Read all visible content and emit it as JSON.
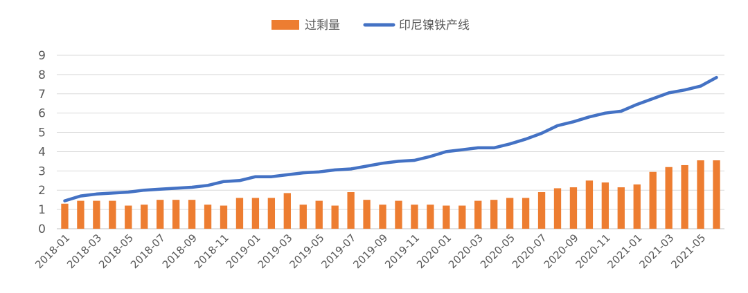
{
  "chart_data": {
    "type": "bar+line",
    "title": "",
    "xlabel": "",
    "ylabel": "",
    "ylim": [
      0,
      9
    ],
    "yticks": [
      0,
      1,
      2,
      3,
      4,
      5,
      6,
      7,
      8,
      9
    ],
    "grid": true,
    "legend_position": "top-center",
    "x": [
      "2018-01",
      "2018-02",
      "2018-03",
      "2018-04",
      "2018-05",
      "2018-06",
      "2018-07",
      "2018-08",
      "2018-09",
      "2018-10",
      "2018-11",
      "2018-12",
      "2019-01",
      "2019-02",
      "2019-03",
      "2019-04",
      "2019-05",
      "2019-06",
      "2019-07",
      "2019-08",
      "2019-09",
      "2019-10",
      "2019-11",
      "2019-12",
      "2020-01",
      "2020-02",
      "2020-03",
      "2020-04",
      "2020-05",
      "2020-06",
      "2020-07",
      "2020-08",
      "2020-09",
      "2020-10",
      "2020-11",
      "2020-12",
      "2021-01",
      "2021-02",
      "2021-03",
      "2021-04",
      "2021-05",
      "2021-06"
    ],
    "x_tick_labels": [
      "2018-01",
      "2018-03",
      "2018-05",
      "2018-07",
      "2018-09",
      "2018-11",
      "2019-01",
      "2019-03",
      "2019-05",
      "2019-07",
      "2019-09",
      "2019-11",
      "2020-01",
      "2020-03",
      "2020-05",
      "2020-07",
      "2020-09",
      "2020-11",
      "2021-01",
      "2021-03",
      "2021-05"
    ],
    "series": [
      {
        "name": "过剩量",
        "type": "bar",
        "color": "#ed7d31",
        "values": [
          1.3,
          1.45,
          1.45,
          1.45,
          1.2,
          1.25,
          1.5,
          1.5,
          1.5,
          1.25,
          1.2,
          1.6,
          1.6,
          1.6,
          1.85,
          1.25,
          1.45,
          1.2,
          1.9,
          1.5,
          1.25,
          1.45,
          1.25,
          1.25,
          1.2,
          1.2,
          1.45,
          1.5,
          1.6,
          1.6,
          1.9,
          2.1,
          2.15,
          2.5,
          2.4,
          2.15,
          2.3,
          2.95,
          3.2,
          3.3,
          3.55,
          3.55
        ]
      },
      {
        "name": "印尼镍铁产线",
        "type": "line",
        "color": "#4472c4",
        "values": [
          1.45,
          1.7,
          1.8,
          1.85,
          1.9,
          2.0,
          2.05,
          2.1,
          2.15,
          2.25,
          2.45,
          2.5,
          2.7,
          2.7,
          2.8,
          2.9,
          2.95,
          3.05,
          3.1,
          3.25,
          3.4,
          3.5,
          3.55,
          3.75,
          4.0,
          4.1,
          4.2,
          4.2,
          4.4,
          4.65,
          4.95,
          5.35,
          5.55,
          5.8,
          6.0,
          6.1,
          6.45,
          6.75,
          7.05,
          7.2,
          7.4,
          7.85
        ]
      }
    ]
  }
}
